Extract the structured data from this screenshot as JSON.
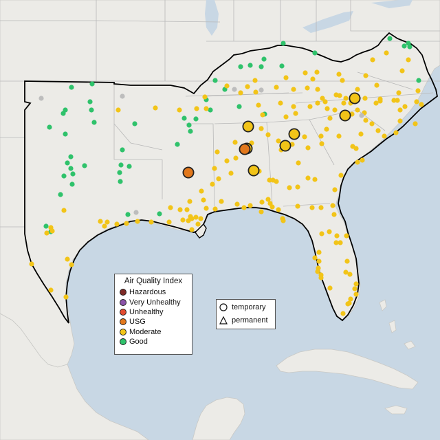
{
  "legend": {
    "title": "Air Quality Index",
    "categories": [
      {
        "label": "Hazardous",
        "color": "#7e2a26"
      },
      {
        "label": "Very Unhealthy",
        "color": "#8b53a8"
      },
      {
        "label": "Unhealthy",
        "color": "#e14b30"
      },
      {
        "label": "USG",
        "color": "#e2781c"
      },
      {
        "label": "Moderate",
        "color": "#f2c418"
      },
      {
        "label": "Good",
        "color": "#2fc26b"
      }
    ],
    "monitor_types": [
      {
        "label": "temporary",
        "shape": "circle-icon"
      },
      {
        "label": "permanent",
        "shape": "triangle-icon"
      }
    ]
  },
  "colors": {
    "land": "#ecebe7",
    "water": "#c8d7e4",
    "state_border": "#b8b8b8",
    "region_border": "#000000",
    "no_data": "#bdbdbd"
  }
}
